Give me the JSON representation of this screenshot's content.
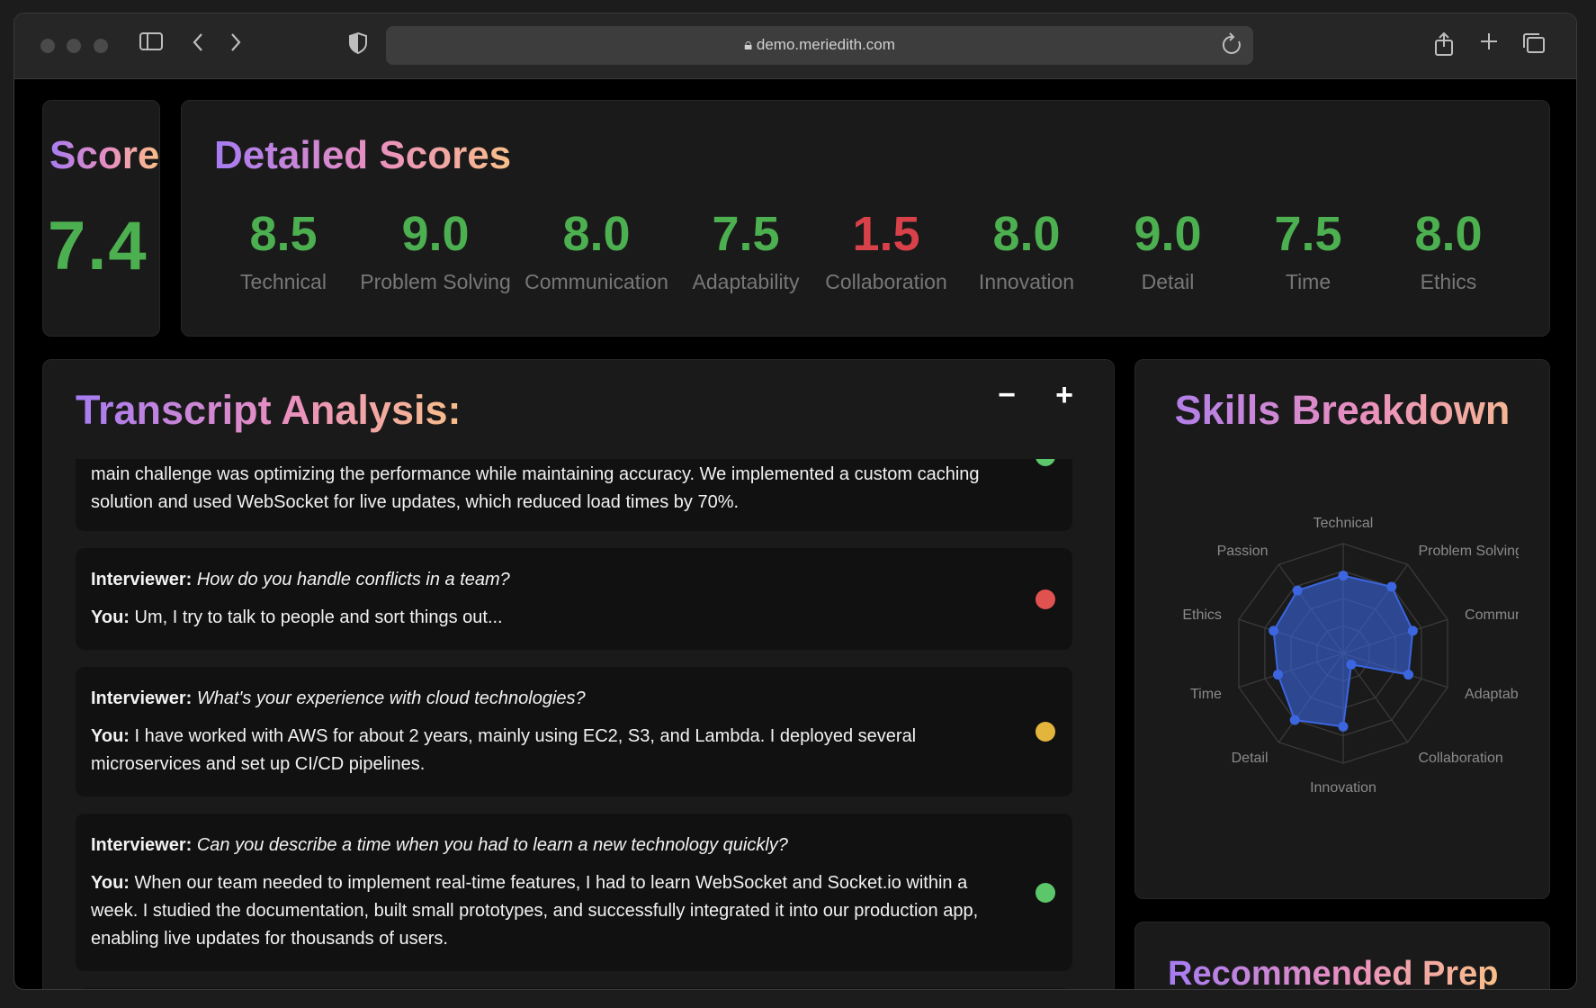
{
  "browser": {
    "url": "demo.meriedith.com"
  },
  "score": {
    "title": "Score",
    "value": "7.4",
    "color": "#4caf50"
  },
  "detailed": {
    "title": "Detailed Scores",
    "items": [
      {
        "label": "Technical",
        "value": "8.5",
        "color": "#4caf50"
      },
      {
        "label": "Problem Solving",
        "value": "9.0",
        "color": "#4caf50"
      },
      {
        "label": "Communication",
        "value": "8.0",
        "color": "#4caf50"
      },
      {
        "label": "Adaptability",
        "value": "7.5",
        "color": "#4caf50"
      },
      {
        "label": "Collaboration",
        "value": "1.5",
        "color": "#d9414a"
      },
      {
        "label": "Innovation",
        "value": "8.0",
        "color": "#4caf50"
      },
      {
        "label": "Detail",
        "value": "9.0",
        "color": "#4caf50"
      },
      {
        "label": "Time",
        "value": "7.5",
        "color": "#4caf50"
      },
      {
        "label": "Ethics",
        "value": "8.0",
        "color": "#4caf50"
      }
    ]
  },
  "transcript": {
    "title": "Transcript Analysis:",
    "minus_label": "−",
    "plus_label": "+",
    "interviewer_label": "Interviewer:",
    "you_label": "You:",
    "items": [
      {
        "answer_partial": "main challenge was optimizing the performance while maintaining accuracy. We implemented a custom caching solution and used WebSocket for live updates, which reduced load times by 70%.",
        "status": "green"
      },
      {
        "question": "How do you handle conflicts in a team?",
        "answer": "Um, I try to talk to people and sort things out...",
        "status": "red"
      },
      {
        "question": "What's your experience with cloud technologies?",
        "answer": "I have worked with AWS for about 2 years, mainly using EC2, S3, and Lambda. I deployed several microservices and set up CI/CD pipelines.",
        "status": "yellow"
      },
      {
        "question": "Can you describe a time when you had to learn a new technology quickly?",
        "answer": "When our team needed to implement real-time features, I had to learn WebSocket and Socket.io within a week. I studied the documentation, built small prototypes, and successfully integrated it into our production app, enabling live updates for thousands of users.",
        "status": "green"
      }
    ],
    "status_colors": {
      "green": "#5cc66a",
      "red": "#e0524f",
      "yellow": "#e3b53c"
    }
  },
  "skills": {
    "title": "Skills Breakdown",
    "chart_data": {
      "type": "radar",
      "categories": [
        "Technical",
        "Problem Solving",
        "Communication",
        "Adaptability",
        "Collaboration",
        "Innovation",
        "Detail",
        "Time",
        "Ethics",
        "Passion"
      ],
      "values": [
        8.5,
        9.0,
        8.0,
        7.5,
        1.5,
        8.0,
        9.0,
        7.5,
        8.0,
        8.5
      ],
      "range": [
        0,
        12
      ],
      "grid": true,
      "color": "#3b66e0"
    }
  },
  "recommended": {
    "title": "Recommended Prep"
  }
}
